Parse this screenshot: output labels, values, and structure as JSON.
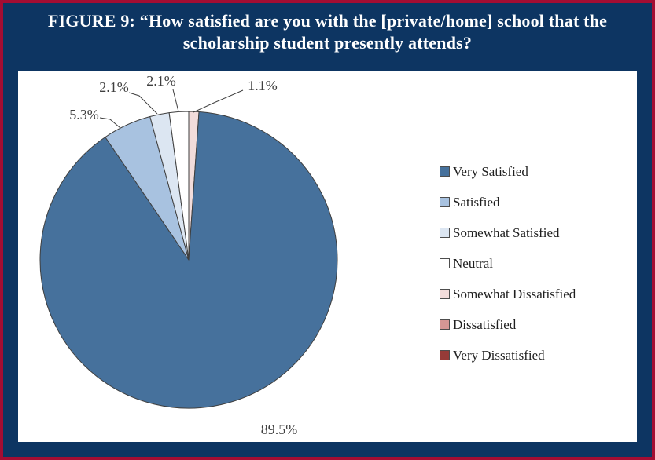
{
  "frame": {
    "background_color": "#0d3562",
    "border_color": "#a30d33"
  },
  "title": {
    "line1": "FIGURE 9: “How satisfied are you with the [private/home] school that the",
    "line2": "scholarship student presently attends?",
    "color": "#ffffff"
  },
  "chart_data": {
    "type": "pie",
    "title": "",
    "legend_position": "right",
    "start_angle_deg": 0,
    "direction": "clockwise",
    "draw_order": [
      4,
      0,
      1,
      2,
      3
    ],
    "slice_border_color": "#3f3f3f",
    "leader_line_color": "#404040",
    "label_color": "#3f3f3f",
    "slices": [
      {
        "label": "Very Satisfied",
        "value": 89.5,
        "display": "89.5%",
        "color": "#46719c"
      },
      {
        "label": "Satisfied",
        "value": 5.3,
        "display": "5.3%",
        "color": "#a8c2e0"
      },
      {
        "label": "Somewhat Satisfied",
        "value": 2.1,
        "display": "2.1%",
        "color": "#dce6f2"
      },
      {
        "label": "Neutral",
        "value": 2.1,
        "display": "2.1%",
        "color": "#ffffff"
      },
      {
        "label": "Somewhat Dissatisfied",
        "value": 1.1,
        "display": "1.1%",
        "color": "#f2dcdb"
      },
      {
        "label": "Dissatisfied",
        "value": 0,
        "display": "",
        "color": "#d59694"
      },
      {
        "label": "Very Dissatisfied",
        "value": 0,
        "display": "",
        "color": "#963b38"
      }
    ]
  }
}
